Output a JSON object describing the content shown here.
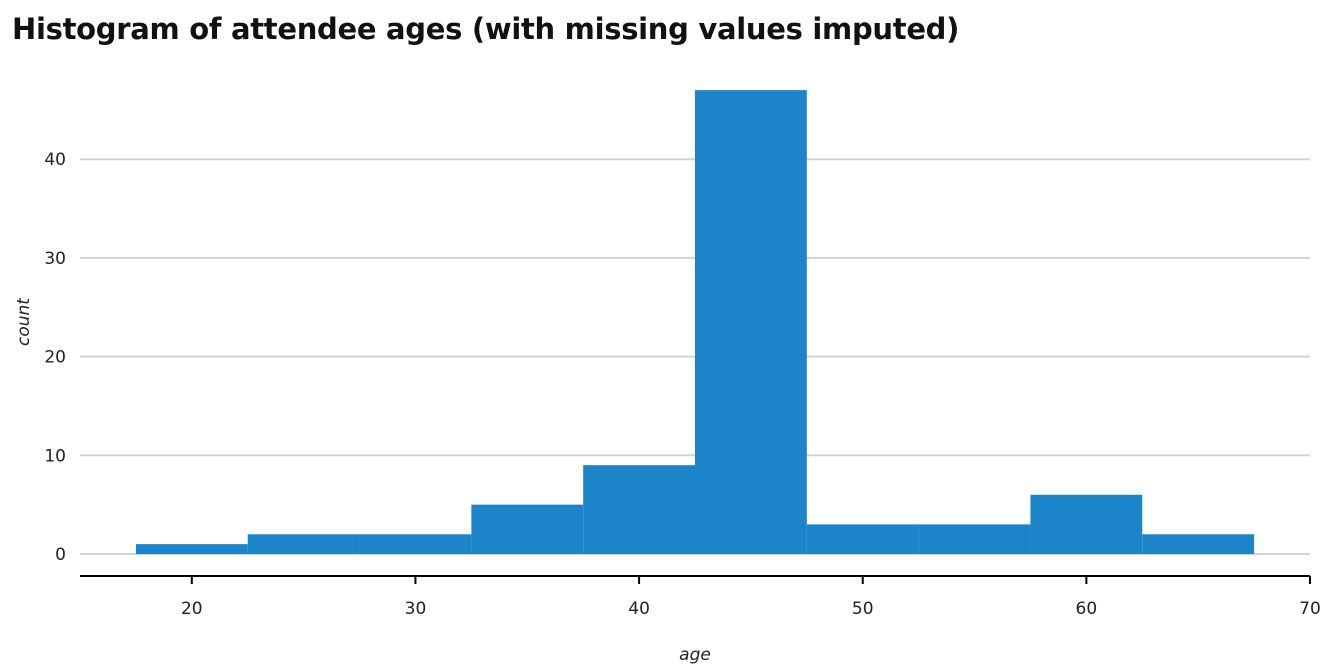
{
  "chart_data": {
    "type": "histogram",
    "title": "Histogram of attendee ages (with missing values imputed)",
    "xlabel": "age",
    "ylabel": "count",
    "xlim": [
      15,
      70
    ],
    "ylim": [
      0,
      48
    ],
    "x_ticks": [
      20,
      30,
      40,
      50,
      60,
      70
    ],
    "y_ticks": [
      0,
      10,
      20,
      30,
      40
    ],
    "grid": "horizontal",
    "bar_color": "#1c84c8",
    "bins": [
      {
        "x0": 17.5,
        "x1": 22.5,
        "count": 1
      },
      {
        "x0": 22.5,
        "x1": 27.5,
        "count": 2
      },
      {
        "x0": 27.5,
        "x1": 32.5,
        "count": 2
      },
      {
        "x0": 32.5,
        "x1": 37.5,
        "count": 5
      },
      {
        "x0": 37.5,
        "x1": 42.5,
        "count": 9
      },
      {
        "x0": 42.5,
        "x1": 47.5,
        "count": 47
      },
      {
        "x0": 47.5,
        "x1": 52.5,
        "count": 3
      },
      {
        "x0": 52.5,
        "x1": 57.5,
        "count": 3
      },
      {
        "x0": 57.5,
        "x1": 62.5,
        "count": 6
      },
      {
        "x0": 62.5,
        "x1": 67.5,
        "count": 2
      }
    ]
  }
}
